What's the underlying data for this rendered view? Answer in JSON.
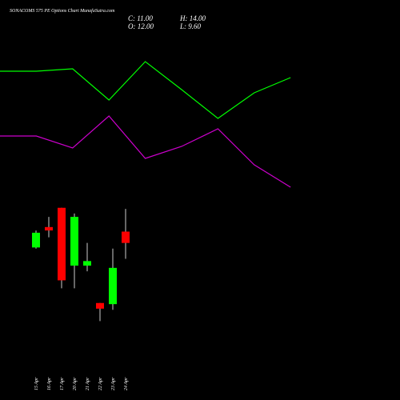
{
  "chart_data": [
    {
      "type": "line",
      "ylim": [
        0,
        100
      ],
      "series": [
        {
          "color": "#00ff00",
          "values": [
            80.5,
            80.5,
            82,
            62.5,
            86.5,
            69,
            51,
            67,
            76.5
          ]
        },
        {
          "color": "#cc00cc",
          "values": [
            40,
            40,
            32.5,
            52.5,
            26,
            33.5,
            44.5,
            22,
            8
          ]
        }
      ]
    },
    {
      "type": "candlestick",
      "title": "SONACOMS 575 PE Options Chart MunafaSutra.com",
      "categories": [
        "15 Apr",
        "16 Apr",
        "17 Apr",
        "20 Apr",
        "21 Apr",
        "22 Apr",
        "23 Apr",
        "24 Apr"
      ],
      "open": [
        10.6,
        12.4,
        14.1,
        9.0,
        9.0,
        5.7,
        5.6,
        12.0
      ],
      "high": [
        12.1,
        13.3,
        14.1,
        13.6,
        11.0,
        5.7,
        10.5,
        14.0
      ],
      "low": [
        10.5,
        11.5,
        7.0,
        7.0,
        8.5,
        4.1,
        5.1,
        9.6
      ],
      "close": [
        11.9,
        12.1,
        7.7,
        13.3,
        9.4,
        5.2,
        8.8,
        11.0
      ],
      "up_color": "#00ff00",
      "down_color": "#ff0000",
      "wick_color": "#cccccc",
      "ylim": [
        3,
        15
      ],
      "value_labels": {
        "close": "C: 11.00",
        "high": "H: 14.00",
        "open": "O: 12.00",
        "low": "L: 9.60"
      }
    }
  ]
}
